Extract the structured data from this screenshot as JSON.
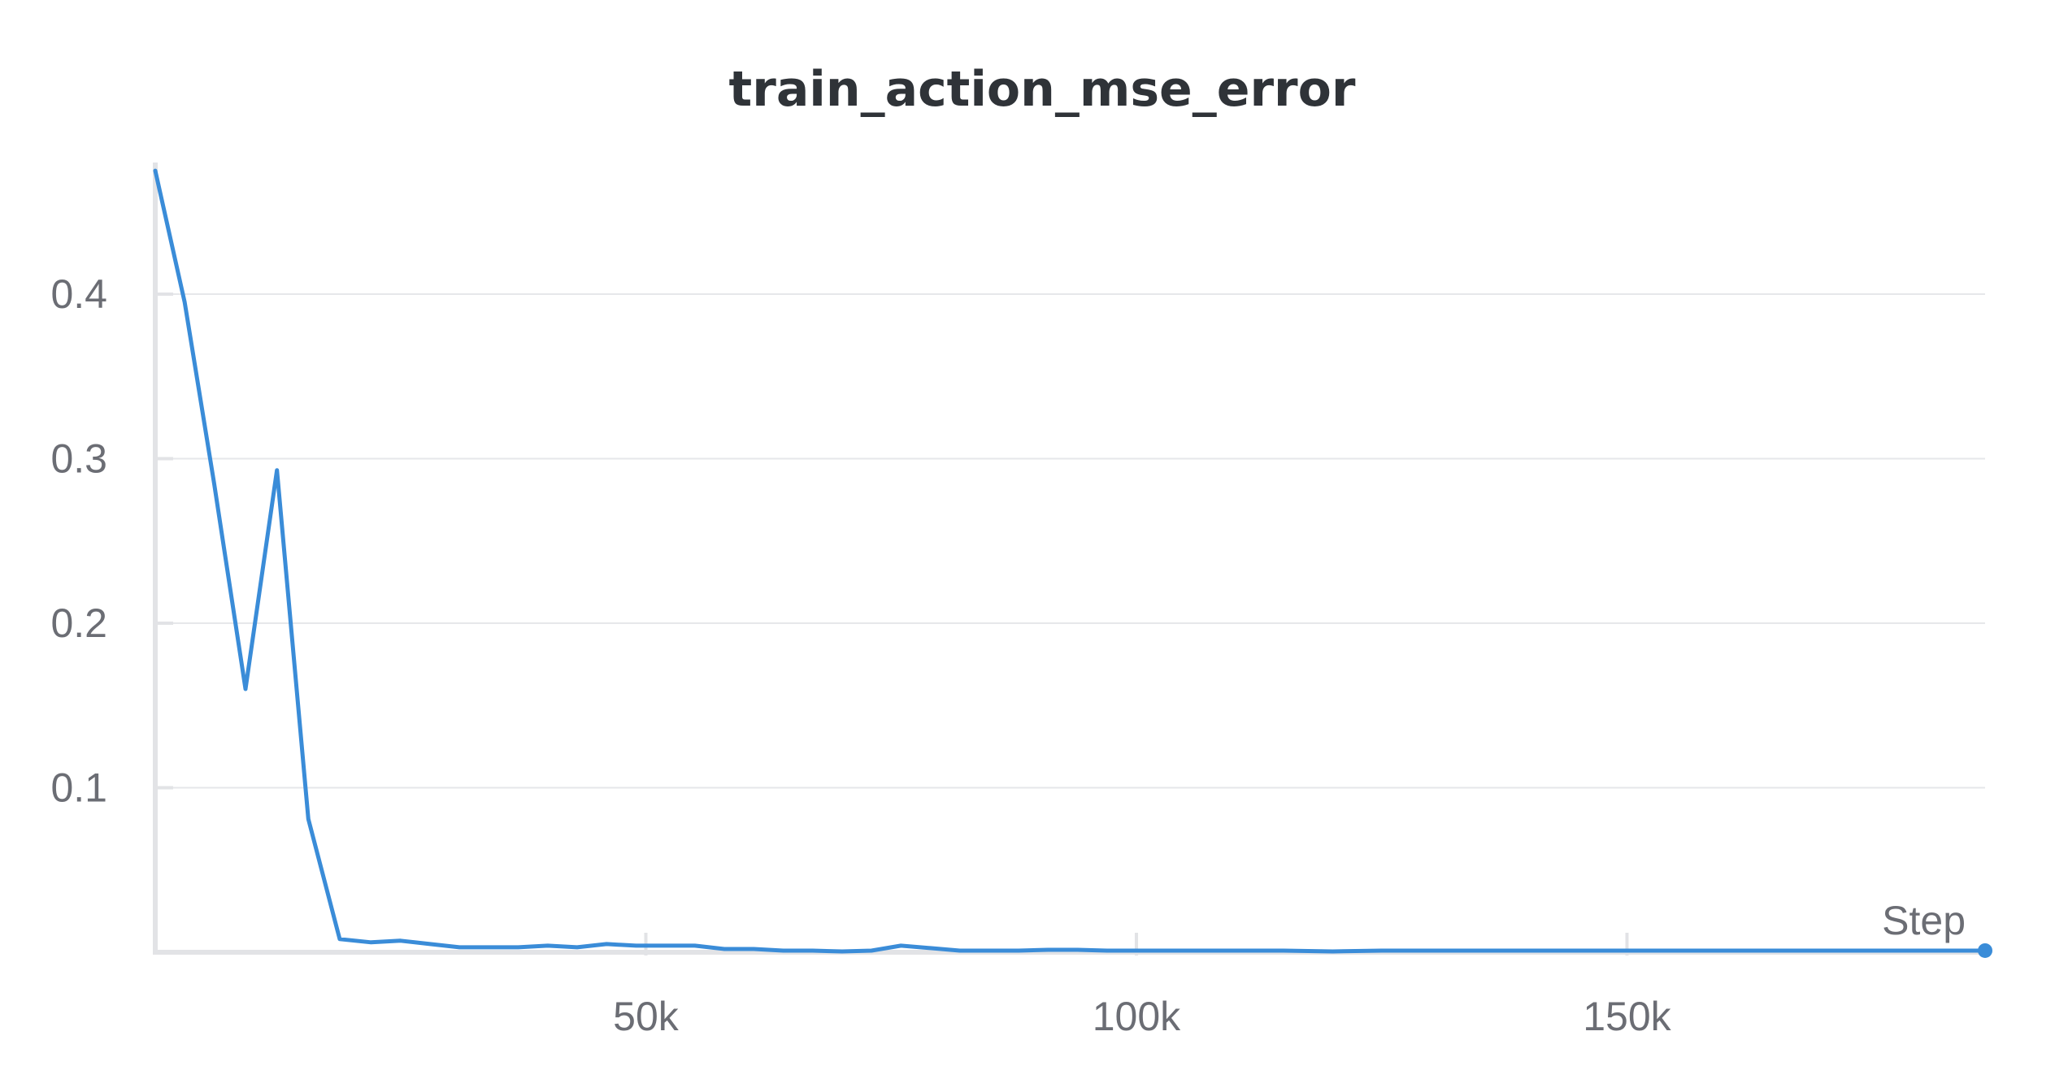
{
  "chart_data": {
    "type": "line",
    "title": "train_action_mse_error",
    "xlabel": "Step",
    "ylabel": "",
    "xlim": [
      0,
      186500
    ],
    "ylim": [
      0,
      0.48
    ],
    "x_ticks": [
      50000,
      100000,
      150000
    ],
    "x_tick_labels": [
      "50k",
      "100k",
      "150k"
    ],
    "y_ticks": [
      0.1,
      0.2,
      0.3,
      0.4
    ],
    "y_tick_labels": [
      "0.1",
      "0.2",
      "0.3",
      "0.4"
    ],
    "grid": true,
    "legend": "none",
    "line_color": "#3a8cd8",
    "series": [
      {
        "x": [
          0,
          3000,
          6000,
          9200,
          12400,
          15600,
          18800,
          22000,
          25000,
          28000,
          31000,
          34000,
          37000,
          40000,
          43000,
          46000,
          49000,
          52000,
          55000,
          58000,
          61000,
          64000,
          67000,
          70000,
          73000,
          76000,
          79000,
          82000,
          85000,
          88000,
          91000,
          94000,
          97000,
          100000,
          105000,
          110000,
          115000,
          120000,
          125000,
          130000,
          135000,
          140000,
          145000,
          150000,
          155000,
          160000,
          165000,
          170000,
          175000,
          180000,
          186500
        ],
        "values": [
          0.475,
          0.395,
          0.285,
          0.16,
          0.293,
          0.081,
          0.008,
          0.006,
          0.007,
          0.005,
          0.003,
          0.003,
          0.003,
          0.004,
          0.003,
          0.005,
          0.004,
          0.004,
          0.004,
          0.002,
          0.002,
          0.001,
          0.001,
          0.0005,
          0.001,
          0.004,
          0.0025,
          0.001,
          0.001,
          0.001,
          0.0015,
          0.0015,
          0.001,
          0.001,
          0.001,
          0.001,
          0.001,
          0.0005,
          0.001,
          0.001,
          0.001,
          0.001,
          0.001,
          0.001,
          0.001,
          0.001,
          0.001,
          0.001,
          0.001,
          0.001,
          0.001
        ]
      }
    ]
  }
}
